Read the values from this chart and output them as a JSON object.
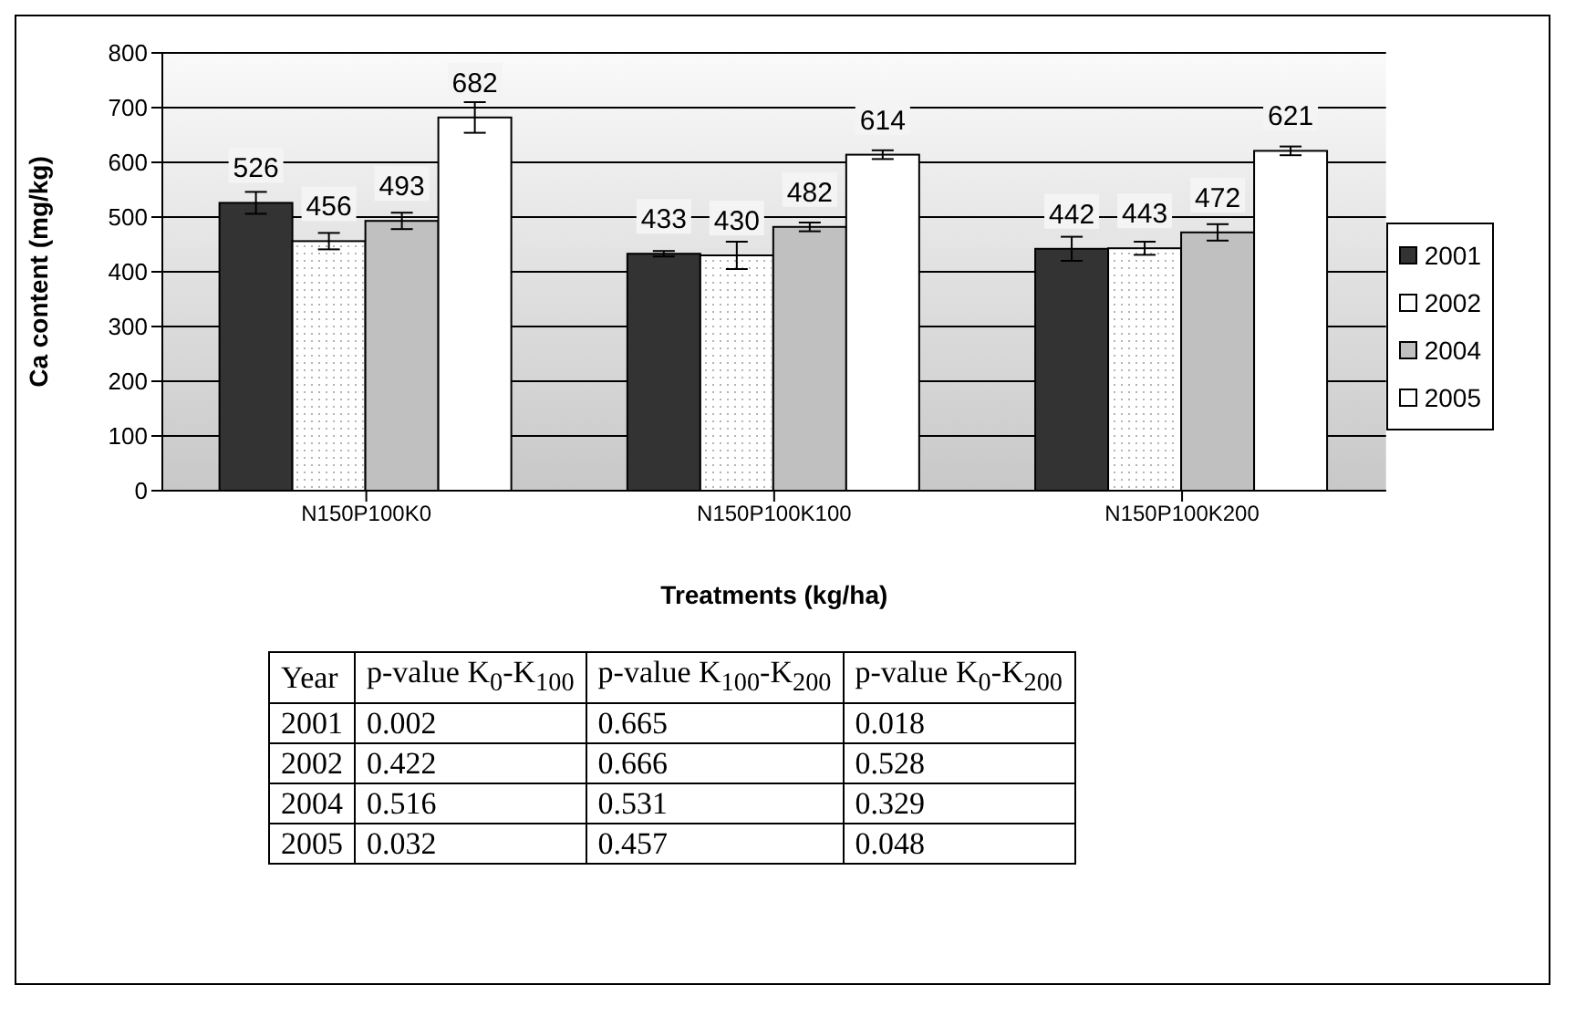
{
  "chart_data": [
    {
      "type": "bar",
      "xlabel": "Treatments (kg/ha)",
      "ylabel": "Ca content (mg/kg)",
      "categories": [
        "N150P100K0",
        "N150P100K100",
        "N150P100K200"
      ],
      "series": [
        {
          "name": "2001",
          "color": "#333333",
          "values": [
            526,
            433,
            442
          ],
          "errors": [
            20,
            5,
            22
          ]
        },
        {
          "name": "2002",
          "color": "#ffffff",
          "values": [
            456,
            430,
            443
          ],
          "errors": [
            15,
            25,
            12
          ]
        },
        {
          "name": "2004",
          "color": "#c0c0c0",
          "values": [
            493,
            482,
            472
          ],
          "errors": [
            15,
            8,
            15
          ]
        },
        {
          "name": "2005",
          "color": "#ffffff",
          "values": [
            682,
            614,
            621
          ],
          "errors": [
            28,
            8,
            8
          ]
        }
      ],
      "ylim": [
        0,
        800
      ],
      "yticks": [
        0,
        100,
        200,
        300,
        400,
        500,
        600,
        700,
        800
      ],
      "grid": "y",
      "legend": "right",
      "data_labels": true
    },
    {
      "type": "heatmap",
      "data_labels": true,
      "ylabel": "Year",
      "categories": [
        "p-value K$_{0}$-K$_{100}$",
        "p-value K$_{100}$-K$_{200}$",
        "p-value K$_{0}$-K$_{200}$"
      ],
      "y_categories": [
        "2001",
        "2002",
        "2004",
        "2005"
      ],
      "cells": [
        [
          0.002,
          0.665,
          0.018
        ],
        [
          0.422,
          0.666,
          0.528
        ],
        [
          0.516,
          0.531,
          0.329
        ],
        [
          0.032,
          0.457,
          0.048
        ]
      ]
    }
  ]
}
